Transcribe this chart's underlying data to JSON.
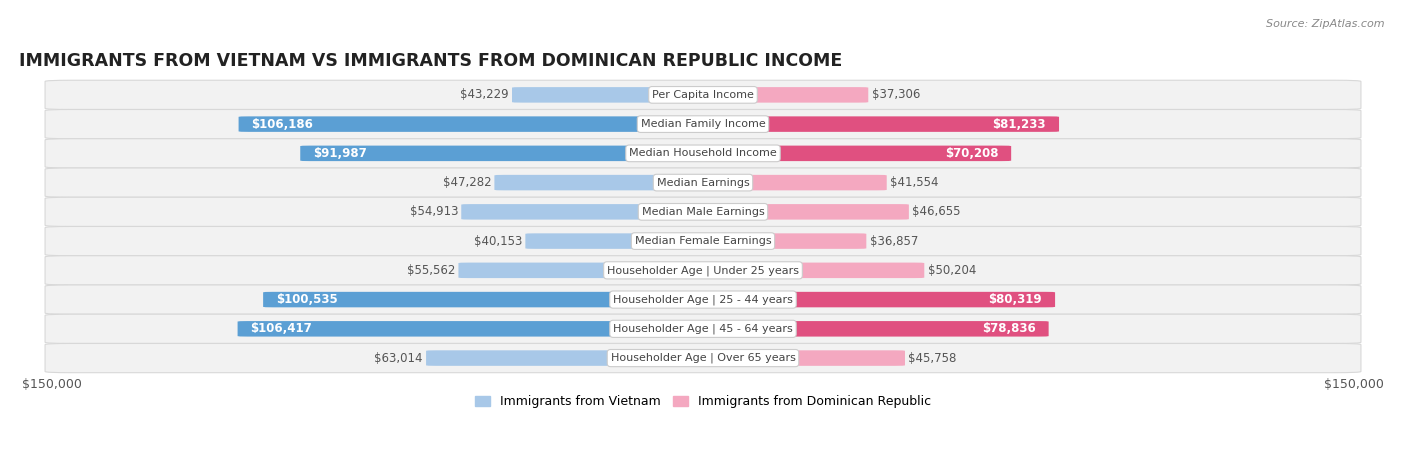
{
  "title": "IMMIGRANTS FROM VIETNAM VS IMMIGRANTS FROM DOMINICAN REPUBLIC INCOME",
  "source": "Source: ZipAtlas.com",
  "categories": [
    "Per Capita Income",
    "Median Family Income",
    "Median Household Income",
    "Median Earnings",
    "Median Male Earnings",
    "Median Female Earnings",
    "Householder Age | Under 25 years",
    "Householder Age | 25 - 44 years",
    "Householder Age | 45 - 64 years",
    "Householder Age | Over 65 years"
  ],
  "vietnam_values": [
    43229,
    106186,
    91987,
    47282,
    54913,
    40153,
    55562,
    100535,
    106417,
    63014
  ],
  "dominican_values": [
    37306,
    81233,
    70208,
    41554,
    46655,
    36857,
    50204,
    80319,
    78836,
    45758
  ],
  "vietnam_labels": [
    "$43,229",
    "$106,186",
    "$91,987",
    "$47,282",
    "$54,913",
    "$40,153",
    "$55,562",
    "$100,535",
    "$106,417",
    "$63,014"
  ],
  "dominican_labels": [
    "$37,306",
    "$81,233",
    "$70,208",
    "$41,554",
    "$46,655",
    "$36,857",
    "$50,204",
    "$80,319",
    "$78,836",
    "$45,758"
  ],
  "vietnam_color_light": "#a8c8e8",
  "vietnam_color_dark": "#5b9fd4",
  "dominican_color_light": "#f4a8c0",
  "dominican_color_dark": "#e05080",
  "max_value": 150000,
  "x_tick_left": "$150,000",
  "x_tick_right": "$150,000",
  "legend_vietnam": "Immigrants from Vietnam",
  "legend_dominican": "Immigrants from Dominican Republic",
  "row_bg": "#f2f2f2",
  "row_border": "#d8d8d8",
  "bar_height": 0.52,
  "label_fontsize": 8.5,
  "category_fontsize": 8.0,
  "title_fontsize": 12.5,
  "vietnam_label_inside_threshold": 75000,
  "dominican_label_inside_threshold": 65000
}
